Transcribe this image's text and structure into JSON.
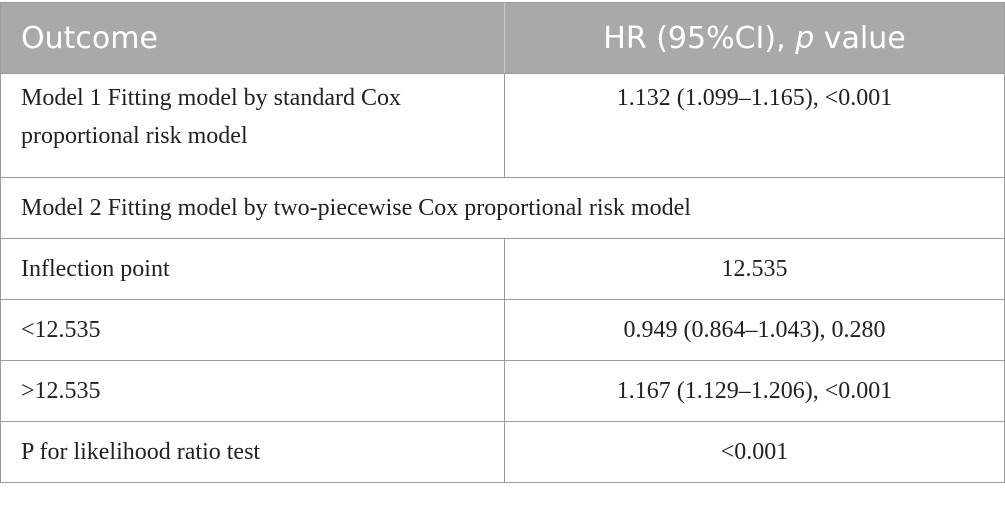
{
  "header": {
    "outcome": "Outcome",
    "hr_prefix": "HR (95%CI), ",
    "hr_p": "p",
    "hr_suffix": " value"
  },
  "rows": [
    {
      "label": "Model 1 Fitting model by standard Cox proportional risk model",
      "value": "1.132 (1.099–1.165), <0.001"
    },
    {
      "label": "Model 2 Fitting model by two-piecewise Cox proportional risk model"
    },
    {
      "label": "Inflection point",
      "value": "12.535"
    },
    {
      "label": "<12.535",
      "value": "0.949 (0.864–1.043), 0.280"
    },
    {
      "label": ">12.535",
      "value": "1.167 (1.129–1.206), <0.001"
    },
    {
      "label": "P for likelihood ratio test",
      "value": "<0.001"
    }
  ]
}
